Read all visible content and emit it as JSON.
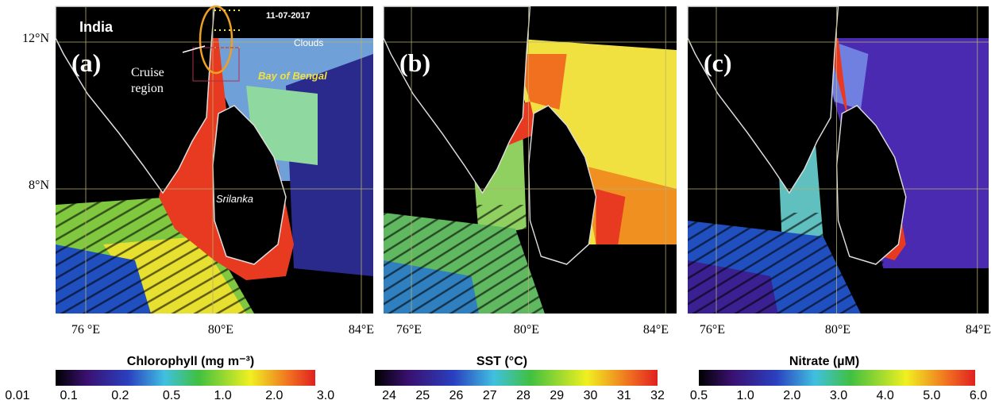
{
  "latitudes": [
    "12°N",
    "8°N"
  ],
  "annotations": {
    "region": "India",
    "date": "11-07-2017",
    "clouds": "Clouds",
    "cruise": [
      "Cruise",
      "region"
    ],
    "bay": "Bay of Bengal",
    "island": "Srilanka"
  },
  "panels": [
    {
      "label": "(a)",
      "longitudes": [
        "76 °E",
        "80°E",
        "84°E"
      ],
      "colorbar": {
        "title": "Chlorophyll (mg m⁻³)",
        "ticks": [
          "0.01",
          "0.1",
          "0.2",
          "0.5",
          "1.0",
          "2.0",
          "3.0"
        ]
      }
    },
    {
      "label": "(b)",
      "longitudes": [
        "76°E",
        "80°E",
        "84°E"
      ],
      "colorbar": {
        "title": "SST (°C)",
        "ticks": [
          "24",
          "25",
          "26",
          "27",
          "28",
          "29",
          "30",
          "31",
          "32"
        ]
      }
    },
    {
      "label": "(c)",
      "longitudes": [
        "76°E",
        "80°E",
        "84°E"
      ],
      "colorbar": {
        "title": "Nitrate (µM)",
        "ticks": [
          "0.5",
          "1.0",
          "2.0",
          "3.0",
          "4.0",
          "5.0",
          "6.0"
        ]
      }
    }
  ]
}
